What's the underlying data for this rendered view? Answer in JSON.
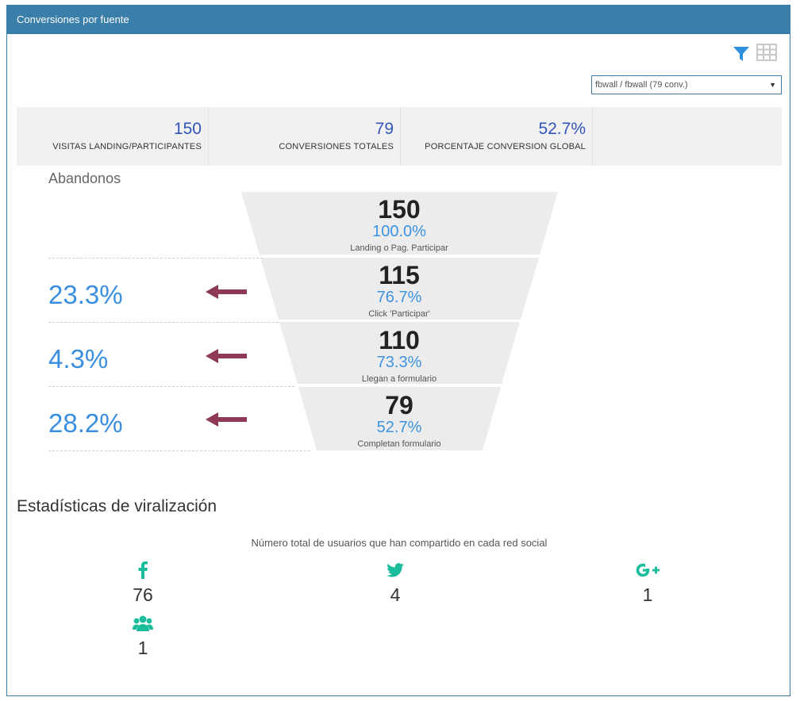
{
  "panel": {
    "title": "Conversiones por fuente"
  },
  "toolbar": {
    "filter_icon": "filter-icon",
    "grid_icon": "table-grid-icon"
  },
  "source_select": {
    "value": "fbwall / fbwall (79 conv.)"
  },
  "stats": [
    {
      "value": "150",
      "label": "VISITAS LANDING/PARTICIPANTES"
    },
    {
      "value": "79",
      "label": "CONVERSIONES TOTALES"
    },
    {
      "value": "52.7%",
      "label": "PORCENTAJE CONVERSION GLOBAL"
    }
  ],
  "abandonos_label": "Abandonos",
  "funnel": [
    {
      "count": "150",
      "pct": "100.0%",
      "label": "Landing o Pag. Participar"
    },
    {
      "count": "115",
      "pct": "76.7%",
      "label": "Click 'Participar'"
    },
    {
      "count": "110",
      "pct": "73.3%",
      "label": "Llegan a formulario"
    },
    {
      "count": "79",
      "pct": "52.7%",
      "label": "Completan formulario"
    }
  ],
  "abandon_rates": [
    "23.3%",
    "4.3%",
    "28.2%"
  ],
  "colors": {
    "header": "#3a7eaa",
    "stat_number": "#3355bb",
    "funnel_fill": "#ececec",
    "percent": "#3c93e0",
    "arrow": "#8e3a55",
    "social": "#1abc9c"
  },
  "viral": {
    "title": "Estadísticas de viralización",
    "subtitle": "Número total de usuarios que han compartido en cada red social",
    "networks": [
      {
        "icon": "facebook-icon",
        "value": "76"
      },
      {
        "icon": "twitter-icon",
        "value": "4"
      },
      {
        "icon": "google-plus-icon",
        "value": "1"
      },
      {
        "icon": "users-icon",
        "value": "1"
      }
    ]
  }
}
